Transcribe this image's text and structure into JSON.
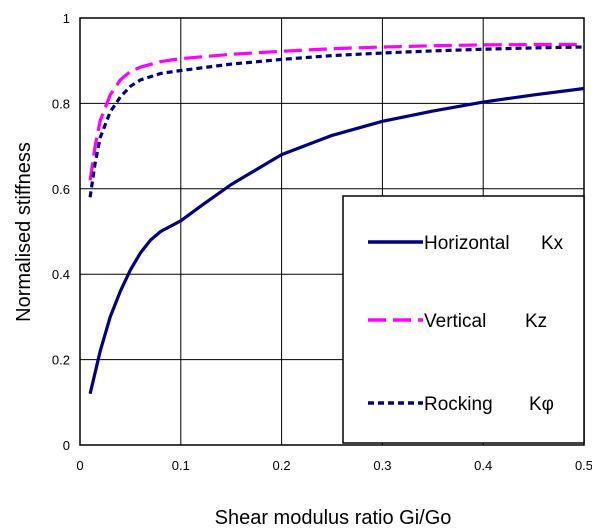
{
  "chart_data": {
    "type": "line",
    "xlabel": "Shear modulus ratio Gi/Go",
    "ylabel": "Normalised stiffness",
    "xlim": [
      0,
      0.5
    ],
    "ylim": [
      0,
      1
    ],
    "xticks": [
      "0",
      "0.1",
      "0.2",
      "0.3",
      "0.4",
      "0.5"
    ],
    "yticks": [
      "0",
      "0.2",
      "0.4",
      "0.6",
      "0.8",
      "1"
    ],
    "grid": true,
    "legend_position": "bottom-right",
    "series": [
      {
        "name": "Horizontal",
        "symbol": "Kx",
        "color": "#000080",
        "style": "solid",
        "x": [
          0.01,
          0.02,
          0.03,
          0.04,
          0.05,
          0.06,
          0.07,
          0.08,
          0.1,
          0.12,
          0.15,
          0.2,
          0.25,
          0.3,
          0.35,
          0.4,
          0.45,
          0.5
        ],
        "y": [
          0.12,
          0.22,
          0.3,
          0.36,
          0.41,
          0.45,
          0.48,
          0.5,
          0.525,
          0.56,
          0.61,
          0.68,
          0.725,
          0.758,
          0.782,
          0.803,
          0.82,
          0.835
        ]
      },
      {
        "name": "Vertical",
        "symbol": "Kz",
        "color": "#ff00ff",
        "style": "dashed",
        "x": [
          0.01,
          0.015,
          0.02,
          0.03,
          0.04,
          0.05,
          0.06,
          0.08,
          0.1,
          0.15,
          0.2,
          0.25,
          0.3,
          0.35,
          0.4,
          0.45,
          0.5
        ],
        "y": [
          0.62,
          0.7,
          0.76,
          0.82,
          0.855,
          0.875,
          0.885,
          0.898,
          0.905,
          0.915,
          0.922,
          0.928,
          0.932,
          0.935,
          0.937,
          0.938,
          0.938
        ]
      },
      {
        "name": "Rocking",
        "symbol": "Kφ",
        "color": "#000080",
        "style": "dotted",
        "x": [
          0.01,
          0.015,
          0.02,
          0.03,
          0.04,
          0.05,
          0.06,
          0.08,
          0.1,
          0.15,
          0.2,
          0.25,
          0.3,
          0.35,
          0.4,
          0.45,
          0.5
        ],
        "y": [
          0.58,
          0.66,
          0.72,
          0.78,
          0.815,
          0.84,
          0.855,
          0.87,
          0.877,
          0.892,
          0.903,
          0.912,
          0.918,
          0.923,
          0.927,
          0.93,
          0.932
        ]
      }
    ]
  }
}
